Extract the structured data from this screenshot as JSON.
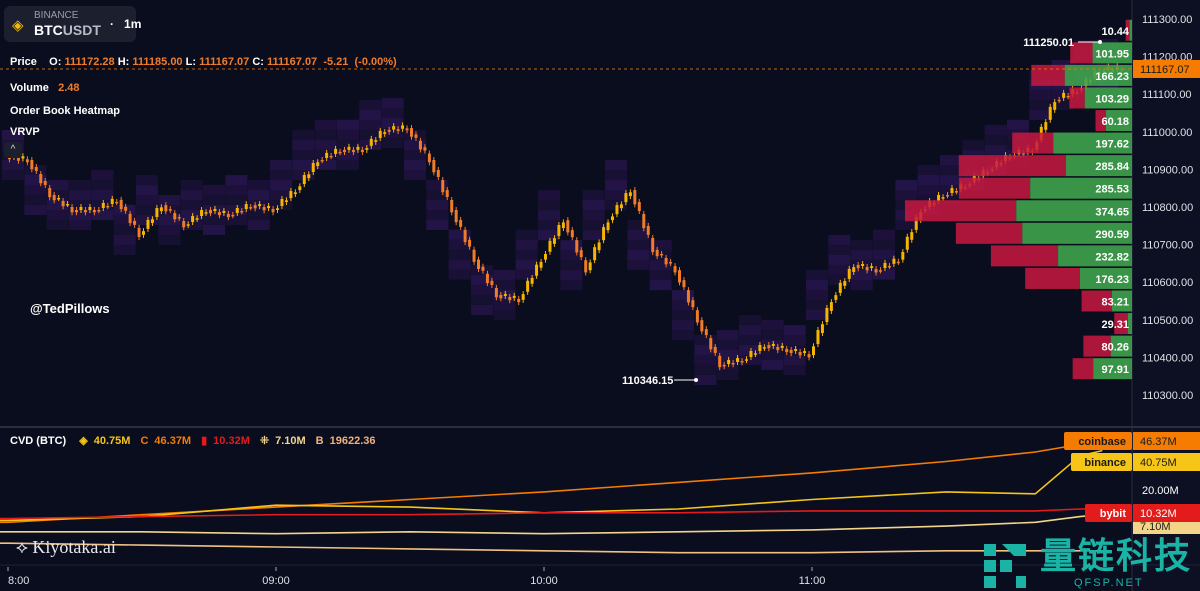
{
  "symbol": {
    "exchange": "BINANCE",
    "base": "BTC",
    "quote": "USDT",
    "timeframe": "1m",
    "separator": "·"
  },
  "legend": {
    "price_label": "Price",
    "o_label": "O:",
    "o": "111172.28",
    "h_label": "H:",
    "h": "111185.00",
    "l_label": "L:",
    "l": "111167.07",
    "c_label": "C:",
    "c": "111167.07",
    "change": "-5.21",
    "change_pct": "(-0.00%)",
    "volume_label": "Volume",
    "volume": "2.48",
    "heatmap_label": "Order Book Heatmap",
    "vrvp_label": "VRVP",
    "collapse_icon": "chevron-up-icon"
  },
  "handle": "@TedPillows",
  "branding": {
    "kiyotaka": "Kiyotaka.ai",
    "watermark_cn": "量链科技",
    "watermark_en": "QFSP.NET"
  },
  "colors": {
    "up": "#f7b500",
    "down": "#f07c2a",
    "vrvp_buy": "#3fa34d",
    "vrvp_sell": "#c8193f",
    "last_price": "#f57c00",
    "coinbase": "#f57c00",
    "binance": "#f5c518",
    "bybit": "#e31b1b",
    "okx": "#f3d58a",
    "bitstamp": "#f1c27d",
    "heatmap": "#3b1a6b"
  },
  "cvd": {
    "title": "CVD (BTC)",
    "items": [
      {
        "icon": "binance-icon",
        "glyph": "◈",
        "value": "40.75M",
        "color": "#f5c518"
      },
      {
        "icon": "coinbase-icon",
        "glyph": "C",
        "value": "46.37M",
        "color": "#f57c00"
      },
      {
        "icon": "bybit-icon",
        "glyph": "▮",
        "value": "10.32M",
        "color": "#e31b1b"
      },
      {
        "icon": "okx-icon",
        "glyph": "⁜",
        "value": "7.10M",
        "color": "#f3d58a"
      },
      {
        "icon": "bitstamp-icon",
        "glyph": "B",
        "value": "19622.36",
        "color": "#f1b27d"
      }
    ]
  },
  "chart_data": [
    {
      "type": "candlestick",
      "y_ticks": [
        "111300.00",
        "111200.00",
        "111100.00",
        "111000.00",
        "110900.00",
        "110800.00",
        "110700.00",
        "110600.00",
        "110500.00",
        "110400.00",
        "110300.00"
      ],
      "ylim": [
        110250,
        111350
      ],
      "x_ticks": [
        "8:00",
        "09:00",
        "10:00",
        "11:00"
      ],
      "times": [
        "08:00",
        "08:05",
        "08:10",
        "08:15",
        "08:20",
        "08:25",
        "08:30",
        "08:35",
        "08:40",
        "08:45",
        "08:50",
        "08:55",
        "09:00",
        "09:05",
        "09:10",
        "09:15",
        "09:20",
        "09:25",
        "09:30",
        "09:35",
        "09:40",
        "09:45",
        "09:50",
        "09:55",
        "10:00",
        "10:05",
        "10:10",
        "10:15",
        "10:20",
        "10:25",
        "10:30",
        "10:35",
        "10:40",
        "10:45",
        "10:50",
        "10:55",
        "11:00",
        "11:05",
        "11:10",
        "11:15",
        "11:20",
        "11:25",
        "11:30",
        "11:35",
        "11:40",
        "11:45",
        "11:50",
        "11:55",
        "12:00",
        "12:05"
      ],
      "close": [
        110925,
        110832,
        110792,
        110792,
        110819,
        110726,
        110805,
        110752,
        110792,
        110779,
        110805,
        110792,
        110845,
        110925,
        110952,
        110952,
        111005,
        111010,
        110925,
        110792,
        110660,
        110566,
        110553,
        110660,
        110765,
        110632,
        110765,
        110845,
        110686,
        110632,
        110499,
        110380,
        110393,
        110433,
        110420,
        110406,
        110553,
        110646,
        110632,
        110660,
        110792,
        110832,
        110858,
        110898,
        110938,
        110952,
        111085,
        111111,
        111164,
        111167.07
      ],
      "last_price": "111167.07",
      "high_marker": "111250.01",
      "low_marker": "110346.15"
    },
    {
      "type": "volume-profile",
      "levels": [
        {
          "price": 111270,
          "total": "10.44",
          "buy": 4
        },
        {
          "price": 111210,
          "total": "101.95",
          "buy": 65
        },
        {
          "price": 111150,
          "total": "166.23",
          "buy": 111
        },
        {
          "price": 111090,
          "total": "103.29",
          "buy": 78
        },
        {
          "price": 111030,
          "total": "60.18",
          "buy": 43
        },
        {
          "price": 110970,
          "total": "197.62",
          "buy": 130
        },
        {
          "price": 110910,
          "total": "285.84",
          "buy": 109
        },
        {
          "price": 110850,
          "total": "285.53",
          "buy": 168
        },
        {
          "price": 110790,
          "total": "374.65",
          "buy": 191
        },
        {
          "price": 110730,
          "total": "290.59",
          "buy": 181
        },
        {
          "price": 110670,
          "total": "232.82",
          "buy": 122
        },
        {
          "price": 110610,
          "total": "176.23",
          "buy": 86
        },
        {
          "price": 110550,
          "total": "83.21",
          "buy": 33
        },
        {
          "price": 110490,
          "total": "29.31",
          "buy": 7
        },
        {
          "price": 110430,
          "total": "80.26",
          "buy": 35
        },
        {
          "price": 110370,
          "total": "97.91",
          "buy": 64
        }
      ]
    },
    {
      "type": "line",
      "title": "CVD (BTC)",
      "y_tick": "20.00M",
      "times": [
        "08:00",
        "08:30",
        "09:00",
        "09:30",
        "10:00",
        "10:30",
        "11:00",
        "11:30",
        "11:50",
        "12:00",
        "12:05"
      ],
      "series": [
        {
          "name": "coinbase",
          "label": "46.37M",
          "color": "#f57c00",
          "values": [
            3,
            7,
            11,
            15,
            19,
            24,
            29,
            35,
            40,
            44,
            46.37
          ]
        },
        {
          "name": "binance",
          "label": "40.75M",
          "color": "#f5c518",
          "values": [
            4,
            6,
            12,
            11,
            8,
            10,
            15,
            19,
            18,
            38,
            40.75
          ]
        },
        {
          "name": "bybit",
          "label": "10.32M",
          "color": "#e31b1b",
          "values": [
            5,
            6,
            7,
            7,
            8,
            8,
            9,
            9,
            9,
            10,
            10.32
          ]
        },
        {
          "label": "7.10M",
          "color": "#f3d58a",
          "values": [
            -2,
            -2,
            -3,
            -2,
            -3,
            -2,
            -1,
            1,
            3,
            6,
            7.1
          ]
        },
        {
          "color": "#f1c27d",
          "values": [
            -8,
            -9,
            -10,
            -11,
            -12,
            -13,
            -13,
            -12,
            -12,
            -12,
            -12
          ]
        }
      ]
    }
  ]
}
